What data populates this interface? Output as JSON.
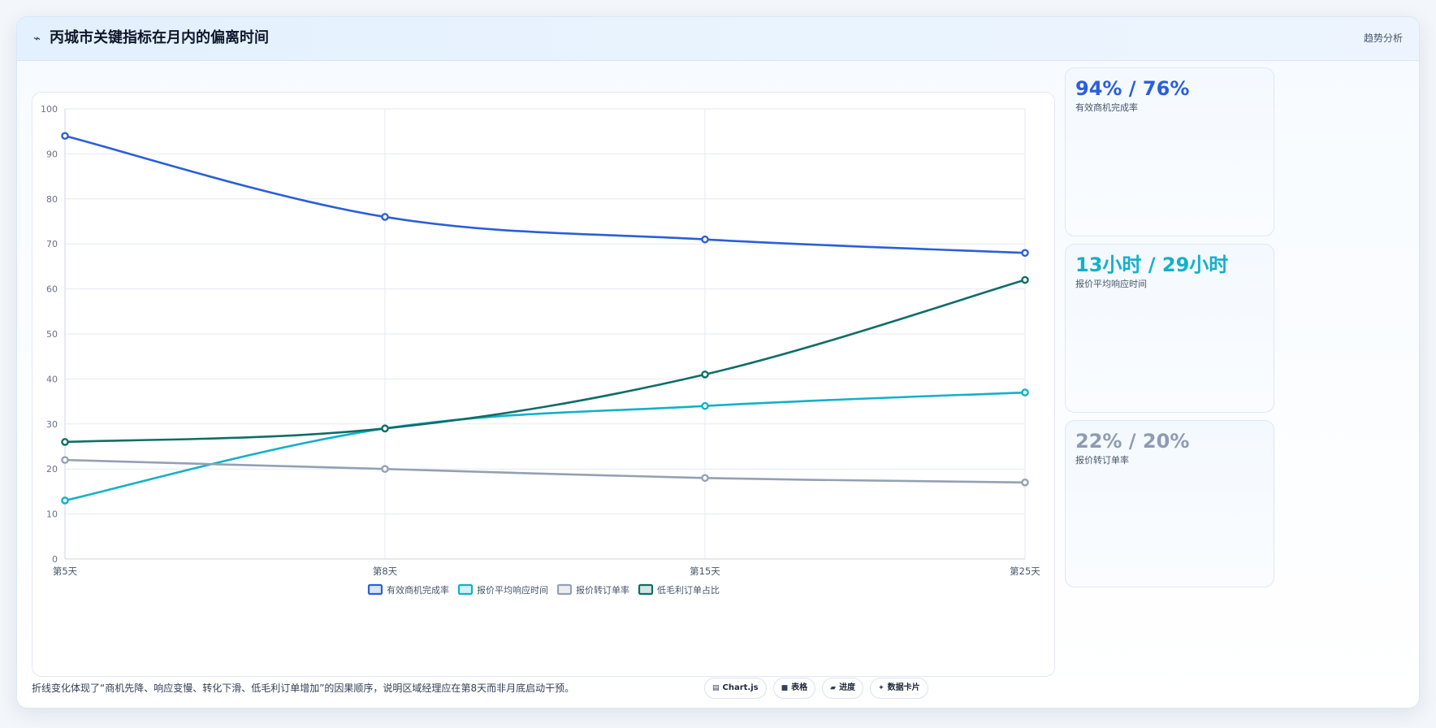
{
  "header": {
    "icon": "chart-line-icon",
    "icon_glyph": "⌁",
    "title": "丙城市关键指标在月内的偏离时间",
    "tag": "趋势分析"
  },
  "kpis": [
    {
      "value": "94% / 76%",
      "label": "有效商机完成率",
      "color": "#2b5fd9"
    },
    {
      "value": "13小时 / 29小时",
      "label": "报价平均响应时间",
      "color": "#13b0c9"
    },
    {
      "value": "22% / 20%",
      "label": "报价转订单率",
      "color": "#8f9bb0"
    }
  ],
  "footer": {
    "note": "折线变化体现了“商机先降、响应变慢、转化下滑、低毛利订单增加”的因果顺序，说明区域经理应在第8天而非月底启动干预。"
  },
  "chips": [
    {
      "icon": "chart-icon",
      "glyph": "▤",
      "label": "Chart.js"
    },
    {
      "icon": "table-icon",
      "glyph": "■",
      "label": "表格"
    },
    {
      "icon": "progress-icon",
      "glyph": "▰",
      "label": "进度"
    },
    {
      "icon": "sparkle-icon",
      "glyph": "✦",
      "label": "数据卡片"
    }
  ],
  "chart_data": {
    "type": "line",
    "categories": [
      "第5天",
      "第8天",
      "第15天",
      "第25天"
    ],
    "ylim": [
      0,
      100
    ],
    "yticks": [
      0,
      10,
      20,
      30,
      40,
      50,
      60,
      70,
      80,
      90,
      100
    ],
    "grid": true,
    "legend": "bottom",
    "series": [
      {
        "name": "有效商机完成率",
        "values": [
          94,
          76,
          71,
          68
        ],
        "color": "#2b5fd9"
      },
      {
        "name": "报价平均响应时间",
        "values": [
          13,
          29,
          34,
          37
        ],
        "color": "#13b0c9"
      },
      {
        "name": "报价转订单率",
        "values": [
          22,
          20,
          18,
          17
        ],
        "color": "#94a0b4"
      },
      {
        "name": "低毛利订单占比",
        "values": [
          26,
          29,
          41,
          62
        ],
        "color": "#0f6e66"
      }
    ]
  }
}
